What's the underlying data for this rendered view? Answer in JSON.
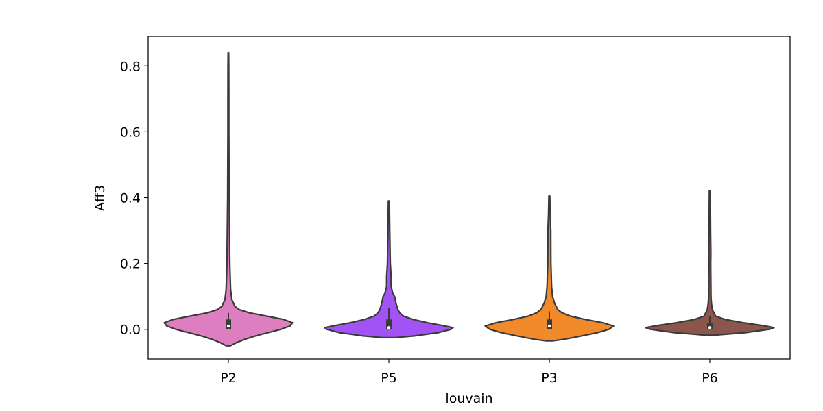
{
  "chart_data": {
    "type": "violin",
    "title": "",
    "xlabel": "louvain",
    "ylabel": "Aff3",
    "categories": [
      "P2",
      "P5",
      "P3",
      "P6"
    ],
    "ylim": [
      -0.09,
      0.89
    ],
    "yticks": [
      0.0,
      0.2,
      0.4,
      0.6,
      0.8
    ],
    "ytick_labels": [
      "0.0",
      "0.2",
      "0.4",
      "0.6",
      "0.8"
    ],
    "grid": false,
    "legend": "none",
    "colors": [
      "#dc7ec0",
      "#a352f5",
      "#f08a2a",
      "#8b564c"
    ],
    "outline_color": "#3a3a3a",
    "violins": [
      {
        "category": "P2",
        "min": -0.05,
        "max": 0.84,
        "q1": 0.0,
        "median": 0.01,
        "q3": 0.03,
        "whisker_low": 0.0,
        "whisker_high": 0.05,
        "density": [
          [
            -0.05,
            0.03
          ],
          [
            -0.04,
            0.13
          ],
          [
            -0.03,
            0.26
          ],
          [
            -0.02,
            0.42
          ],
          [
            -0.01,
            0.62
          ],
          [
            0.0,
            0.82
          ],
          [
            0.01,
            0.96
          ],
          [
            0.02,
            1.0
          ],
          [
            0.03,
            0.86
          ],
          [
            0.04,
            0.6
          ],
          [
            0.05,
            0.33
          ],
          [
            0.06,
            0.17
          ],
          [
            0.07,
            0.1
          ],
          [
            0.09,
            0.055
          ],
          [
            0.12,
            0.035
          ],
          [
            0.16,
            0.028
          ],
          [
            0.2,
            0.022
          ],
          [
            0.3,
            0.017
          ],
          [
            0.4,
            0.012
          ],
          [
            0.5,
            0.01
          ],
          [
            0.6,
            0.008
          ],
          [
            0.7,
            0.007
          ],
          [
            0.8,
            0.006
          ],
          [
            0.84,
            0.004
          ]
        ]
      },
      {
        "category": "P5",
        "min": -0.025,
        "max": 0.39,
        "q1": 0.0,
        "median": 0.005,
        "q3": 0.03,
        "whisker_low": 0.0,
        "whisker_high": 0.065,
        "density": [
          [
            -0.025,
            0.1
          ],
          [
            -0.02,
            0.4
          ],
          [
            -0.01,
            0.77
          ],
          [
            0.0,
            0.97
          ],
          [
            0.005,
            1.0
          ],
          [
            0.01,
            0.88
          ],
          [
            0.02,
            0.6
          ],
          [
            0.03,
            0.38
          ],
          [
            0.04,
            0.23
          ],
          [
            0.05,
            0.17
          ],
          [
            0.06,
            0.14
          ],
          [
            0.08,
            0.11
          ],
          [
            0.1,
            0.09
          ],
          [
            0.11,
            0.06
          ],
          [
            0.13,
            0.035
          ],
          [
            0.16,
            0.035
          ],
          [
            0.2,
            0.022
          ],
          [
            0.3,
            0.014
          ],
          [
            0.39,
            0.007
          ]
        ]
      },
      {
        "category": "P3",
        "min": -0.035,
        "max": 0.405,
        "q1": 0.0,
        "median": 0.01,
        "q3": 0.03,
        "whisker_low": 0.0,
        "whisker_high": 0.055,
        "density": [
          [
            -0.035,
            0.05
          ],
          [
            -0.03,
            0.24
          ],
          [
            -0.02,
            0.5
          ],
          [
            -0.01,
            0.75
          ],
          [
            0.0,
            0.93
          ],
          [
            0.01,
            1.0
          ],
          [
            0.02,
            0.83
          ],
          [
            0.03,
            0.56
          ],
          [
            0.04,
            0.33
          ],
          [
            0.05,
            0.2
          ],
          [
            0.06,
            0.13
          ],
          [
            0.08,
            0.08
          ],
          [
            0.1,
            0.05
          ],
          [
            0.13,
            0.035
          ],
          [
            0.2,
            0.025
          ],
          [
            0.3,
            0.022
          ],
          [
            0.35,
            0.013
          ],
          [
            0.405,
            0.008
          ]
        ]
      },
      {
        "category": "P6",
        "min": -0.018,
        "max": 0.42,
        "q1": 0.0,
        "median": 0.005,
        "q3": 0.02,
        "whisker_low": 0.0,
        "whisker_high": 0.04,
        "density": [
          [
            -0.018,
            0.05
          ],
          [
            -0.01,
            0.55
          ],
          [
            0.0,
            0.93
          ],
          [
            0.005,
            1.0
          ],
          [
            0.01,
            0.87
          ],
          [
            0.02,
            0.52
          ],
          [
            0.03,
            0.24
          ],
          [
            0.04,
            0.09
          ],
          [
            0.06,
            0.04
          ],
          [
            0.08,
            0.025
          ],
          [
            0.1,
            0.018
          ],
          [
            0.2,
            0.014
          ],
          [
            0.23,
            0.016
          ],
          [
            0.3,
            0.012
          ],
          [
            0.42,
            0.007
          ]
        ]
      }
    ]
  }
}
